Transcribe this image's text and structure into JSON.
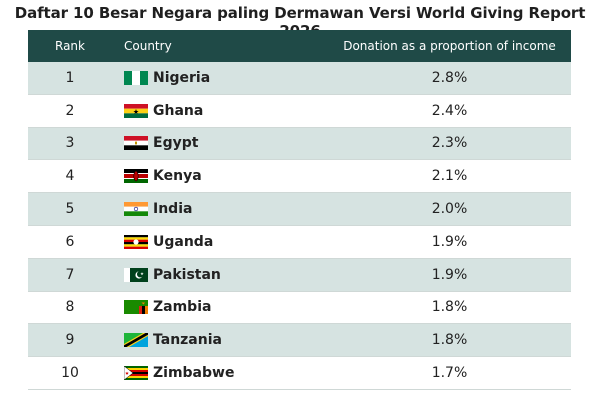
{
  "title": "Daftar 10 Besar Negara paling Dermawan Versi World Giving Report 2026",
  "chart_data": {
    "type": "table",
    "columns": [
      "Rank",
      "Country",
      "Donation as a proportion of income"
    ],
    "rows": [
      {
        "rank": "1",
        "country": "Nigeria",
        "flag": "nigeria-flag-icon",
        "donation": "2.8%"
      },
      {
        "rank": "2",
        "country": "Ghana",
        "flag": "ghana-flag-icon",
        "donation": "2.4%"
      },
      {
        "rank": "3",
        "country": "Egypt",
        "flag": "egypt-flag-icon",
        "donation": "2.3%"
      },
      {
        "rank": "4",
        "country": "Kenya",
        "flag": "kenya-flag-icon",
        "donation": "2.1%"
      },
      {
        "rank": "5",
        "country": "India",
        "flag": "india-flag-icon",
        "donation": "2.0%"
      },
      {
        "rank": "6",
        "country": "Uganda",
        "flag": "uganda-flag-icon",
        "donation": "1.9%"
      },
      {
        "rank": "7",
        "country": "Pakistan",
        "flag": "pakistan-flag-icon",
        "donation": "1.9%"
      },
      {
        "rank": "8",
        "country": "Zambia",
        "flag": "zambia-flag-icon",
        "donation": "1.8%"
      },
      {
        "rank": "9",
        "country": "Tanzania",
        "flag": "tanzania-flag-icon",
        "donation": "1.8%"
      },
      {
        "rank": "10",
        "country": "Zimbabwe",
        "flag": "zimbabwe-flag-icon",
        "donation": "1.7%"
      }
    ]
  },
  "colors": {
    "header_bg": "#1f4a47",
    "row_alt_bg": "#d6e3e1"
  }
}
